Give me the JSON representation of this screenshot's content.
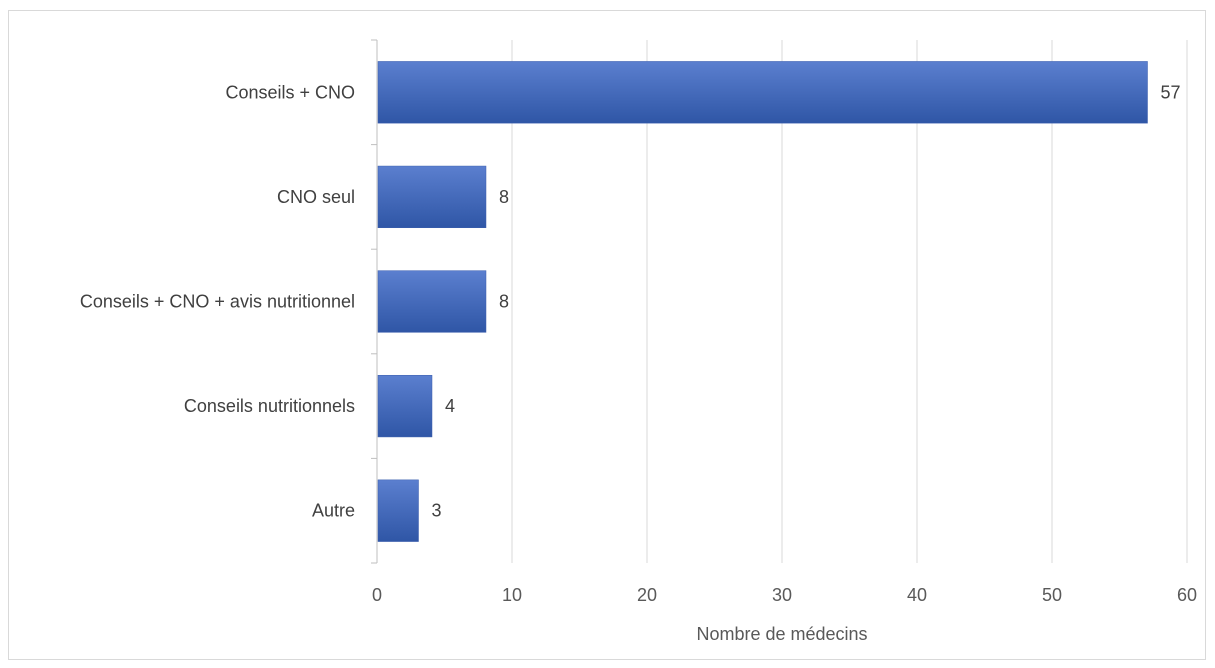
{
  "chart_data": {
    "type": "bar",
    "orientation": "horizontal",
    "categories": [
      "Conseils + CNO",
      "CNO seul ",
      "Conseils + CNO + avis nutritionnel",
      "Conseils nutritionnels ",
      "Autre"
    ],
    "values": [
      57,
      8,
      8,
      4,
      3
    ],
    "data_labels": [
      "57",
      "8",
      "8",
      "4",
      "3"
    ],
    "xlabel": "Nombre de médecins",
    "ylabel": "",
    "xlim": [
      0,
      60
    ],
    "xticks": [
      0,
      10,
      20,
      30,
      40,
      50,
      60
    ],
    "xtick_labels": [
      "0",
      "10",
      "20",
      "30",
      "40",
      "50",
      "60"
    ],
    "grid": "vertical",
    "legend": "none",
    "colors": {
      "bar_top": "#5b7fcf",
      "bar_bottom": "#2f56a6",
      "grid": "#d9d9d9",
      "axis": "#bfbfbf"
    }
  }
}
